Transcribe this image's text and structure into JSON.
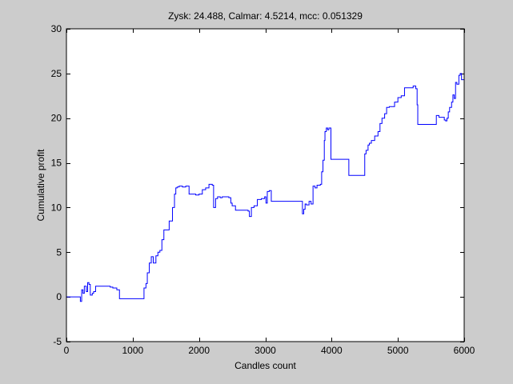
{
  "chart_data": {
    "type": "line",
    "title": "Zysk: 24.488, Calmar: 4.5214, mcc: 0.051329",
    "xlabel": "Candles count",
    "ylabel": "Cumulative profit",
    "xlim": [
      0,
      6000
    ],
    "ylim": [
      -5,
      30
    ],
    "xticks": [
      0,
      1000,
      2000,
      3000,
      4000,
      5000,
      6000
    ],
    "yticks": [
      -5,
      0,
      5,
      10,
      15,
      20,
      25,
      30
    ],
    "grid": false,
    "colors": {
      "series": "#0000ff",
      "axes_bg": "#ffffff",
      "figure_bg": "#cccccc"
    },
    "series": [
      {
        "interpolation": "step",
        "x": [
          0,
          210,
          230,
          250,
          270,
          300,
          320,
          340,
          360,
          390,
          410,
          440,
          470,
          660,
          700,
          760,
          800,
          1150,
          1170,
          1200,
          1220,
          1250,
          1280,
          1310,
          1350,
          1380,
          1410,
          1440,
          1470,
          1510,
          1550,
          1600,
          1630,
          1650,
          1670,
          1700,
          1750,
          1800,
          1850,
          1900,
          1950,
          2000,
          2050,
          2100,
          2150,
          2200,
          2220,
          2250,
          2280,
          2320,
          2350,
          2420,
          2450,
          2480,
          2500,
          2550,
          2620,
          2700,
          2740,
          2760,
          2790,
          2830,
          2880,
          2940,
          2990,
          3010,
          3030,
          3060,
          3090,
          3100,
          3140,
          3200,
          3300,
          3400,
          3500,
          3560,
          3580,
          3600,
          3620,
          3660,
          3690,
          3720,
          3750,
          3780,
          3810,
          3830,
          3850,
          3870,
          3890,
          3900,
          3920,
          3940,
          3960,
          3990,
          4020,
          4100,
          4200,
          4260,
          4300,
          4400,
          4500,
          4520,
          4550,
          4570,
          4600,
          4650,
          4700,
          4730,
          4760,
          4800,
          4830,
          4850,
          4870,
          4900,
          4950,
          5000,
          5050,
          5100,
          5150,
          5200,
          5230,
          5270,
          5290,
          5300,
          5330,
          5400,
          5500,
          5550,
          5580,
          5620,
          5660,
          5700,
          5720,
          5740,
          5760,
          5780,
          5810,
          5830,
          5850,
          5870,
          5890,
          5920,
          5940,
          5960,
          6000
        ],
        "y": [
          0,
          -0.5,
          0.8,
          0.4,
          1.2,
          0.6,
          1.6,
          1.4,
          0.2,
          0.4,
          0.6,
          1.2,
          1.2,
          1.1,
          1.0,
          0.8,
          -0.2,
          -0.2,
          1.0,
          1.5,
          2.7,
          3.8,
          4.5,
          3.8,
          4.6,
          5.0,
          5.2,
          6.4,
          7.5,
          7.5,
          8.5,
          10.0,
          11.5,
          12.2,
          12.3,
          12.4,
          12.3,
          12.4,
          11.5,
          11.5,
          11.4,
          11.5,
          12.0,
          12.2,
          12.6,
          12.5,
          10.0,
          11.0,
          11.2,
          11.1,
          11.2,
          11.2,
          11.1,
          10.5,
          10.2,
          9.7,
          9.7,
          9.7,
          9.6,
          9.0,
          10.0,
          10.2,
          10.9,
          11.0,
          11.2,
          10.5,
          11.8,
          11.9,
          10.7,
          10.7,
          10.7,
          10.7,
          10.7,
          10.7,
          10.7,
          9.3,
          9.8,
          10.4,
          10.3,
          10.7,
          10.4,
          12.4,
          12.2,
          12.5,
          12.5,
          12.6,
          14.0,
          15.3,
          17.5,
          18.5,
          18.9,
          18.7,
          18.9,
          15.4,
          15.4,
          15.4,
          15.4,
          13.6,
          13.6,
          13.6,
          16.0,
          16.4,
          17.0,
          17.2,
          17.5,
          18.0,
          18.5,
          19.4,
          20.0,
          20.5,
          21.2,
          21.2,
          21.3,
          21.3,
          21.8,
          22.3,
          22.5,
          23.4,
          23.4,
          23.4,
          23.6,
          23.3,
          21.5,
          19.3,
          19.3,
          19.3,
          19.3,
          19.3,
          20.3,
          20.1,
          20.1,
          19.8,
          19.7,
          20.0,
          20.7,
          21.2,
          21.8,
          22.6,
          22.2,
          24.0,
          23.8,
          24.8,
          25.0,
          24.3,
          24.5
        ]
      }
    ]
  }
}
